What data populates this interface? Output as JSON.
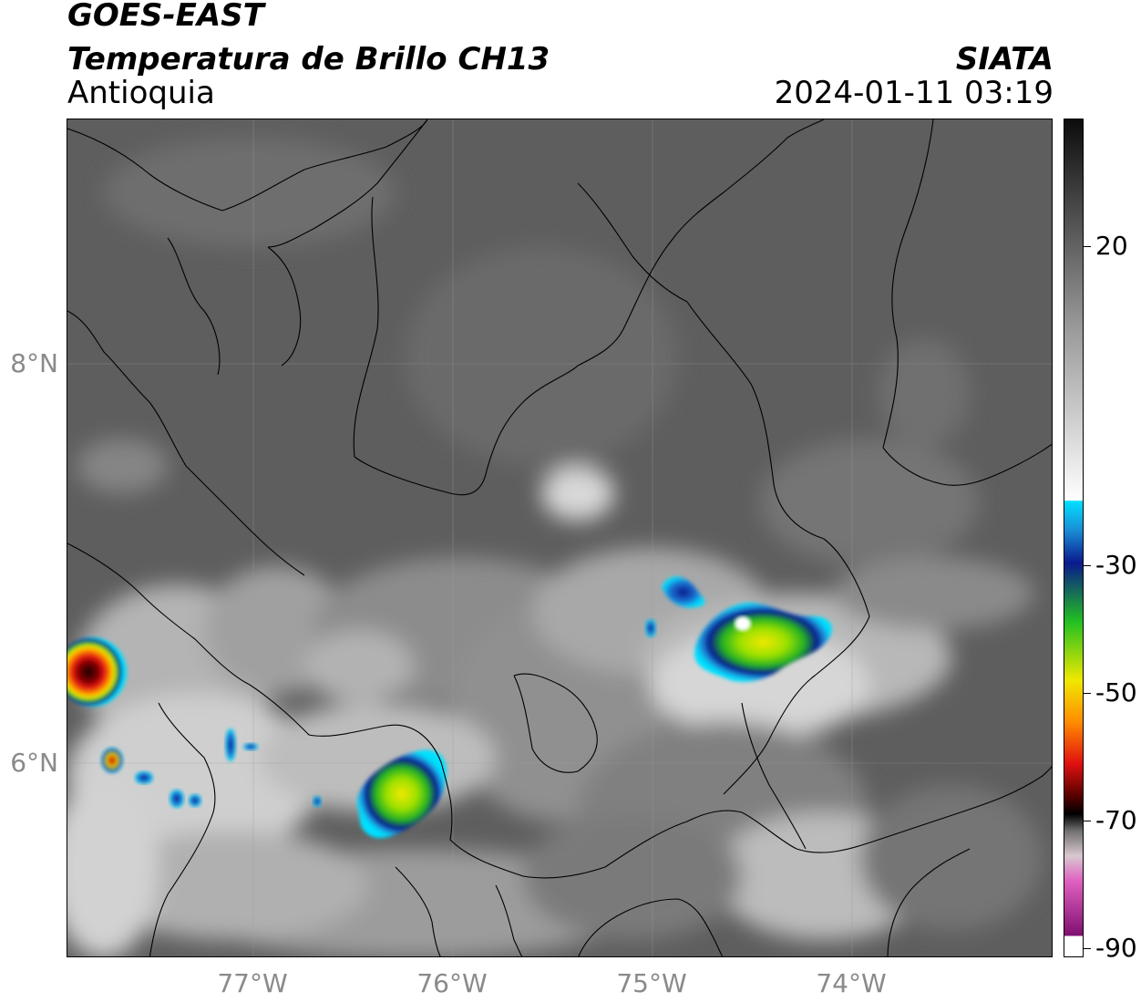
{
  "header": {
    "satellite": "GOES-EAST",
    "product": "Temperatura de Brillo CH13",
    "organization": "SIATA",
    "region": "Antioquia",
    "datetime": "2024-01-11 03:19"
  },
  "map": {
    "latitude_labels": [
      "8°N",
      "6°N"
    ],
    "longitude_labels": [
      "77°W",
      "76°W",
      "75°W",
      "74°W"
    ],
    "background_palette": [
      "#4a4a4a",
      "#5c5c5c",
      "#707070",
      "#8a8a8a",
      "#a6a6a6",
      "#c6c6c6",
      "#e6e6e6"
    ],
    "colorbar": {
      "tick_labels": [
        "20",
        "-30",
        "-50",
        "-70",
        "-90"
      ],
      "palette": {
        "warm_gray_top": "#0c0c0c",
        "gray_mid": "#9a9a9a",
        "white": "#ffffff",
        "cyan": "#00e0ff",
        "blue": "#0a1a8c",
        "green": "#22c022",
        "yellow": "#f0e800",
        "orange": "#ff8c00",
        "red": "#e01010",
        "dark_red": "#500000",
        "black": "#000000",
        "pink": "#e060c0",
        "purple": "#801070"
      }
    }
  }
}
